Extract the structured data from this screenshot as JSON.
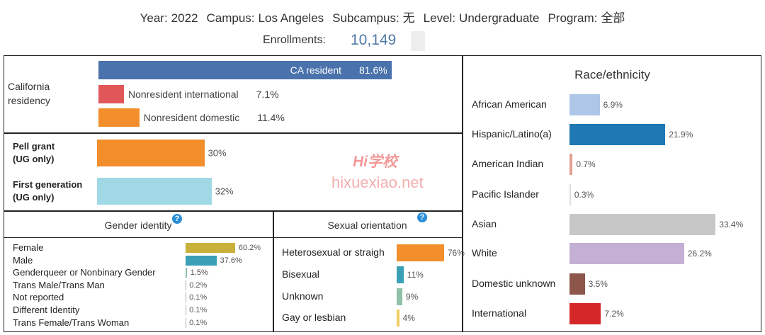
{
  "header": {
    "filters": [
      {
        "label": "Year:",
        "value": "2022"
      },
      {
        "label": "Campus:",
        "value": "Los Angeles"
      },
      {
        "label": "Subcampus:",
        "value": "无"
      },
      {
        "label": "Level:",
        "value": "Undergraduate"
      },
      {
        "label": "Program:",
        "value": "全部"
      }
    ],
    "enrollments_label": "Enrollments:",
    "enrollments_value": "10,149"
  },
  "watermark": {
    "logo": "Hi学校",
    "site": "hixuexiao.net"
  },
  "chart_data": [
    {
      "type": "bar",
      "orientation": "horizontal",
      "title": "California residency",
      "categories": [
        "CA resident",
        "Nonresident international",
        "Nonresident domestic"
      ],
      "values": [
        81.6,
        7.1,
        11.4
      ],
      "value_labels": [
        "81.6%",
        "7.1%",
        "11.4%"
      ],
      "colors": [
        "#4a72ac",
        "#e15759",
        "#f28e2b"
      ],
      "xlim": [
        0,
        100
      ]
    },
    {
      "type": "bar",
      "orientation": "horizontal",
      "categories": [
        "Pell grant\n(UG only)",
        "First generation\n(UG only)"
      ],
      "values": [
        30,
        32
      ],
      "value_labels": [
        "30%",
        "32%"
      ],
      "colors": [
        "#f28e2b",
        "#a0d8e6"
      ],
      "xlim": [
        0,
        100
      ]
    },
    {
      "type": "bar",
      "orientation": "horizontal",
      "title": "Gender identity",
      "categories": [
        "Female",
        "Male",
        "Genderqueer or Nonbinary Gender",
        "Trans Male/Trans Man",
        "Not reported",
        "Different Identity",
        "Trans Female/Trans Woman"
      ],
      "values": [
        60.2,
        37.6,
        1.5,
        0.2,
        0.1,
        0.1,
        0.1
      ],
      "value_labels": [
        "60.2%",
        "37.6%",
        "1.5%",
        "0.2%",
        "0.1%",
        "0.1%",
        "0.1%"
      ],
      "colors": [
        "#c9b03a",
        "#3aa0b5",
        "#8fc0a9",
        "#aaaaaa",
        "#aaaaaa",
        "#aaaaaa",
        "#aaaaaa"
      ],
      "xlim": [
        0,
        100
      ]
    },
    {
      "type": "bar",
      "orientation": "horizontal",
      "title": "Sexual orientation",
      "categories": [
        "Heterosexual or straigh",
        "Bisexual",
        "Unknown",
        "Gay or lesbian"
      ],
      "values": [
        76,
        11,
        9,
        4
      ],
      "value_labels": [
        "76%",
        "11%",
        "9%",
        "4%"
      ],
      "colors": [
        "#f28e2b",
        "#3aa0b5",
        "#8fc0a9",
        "#f1ce63"
      ],
      "xlim": [
        0,
        100
      ]
    },
    {
      "type": "bar",
      "orientation": "horizontal",
      "title": "Race/ethnicity",
      "categories": [
        "African American",
        "Hispanic/Latino(a)",
        "American Indian",
        "Pacific Islander",
        "Asian",
        "White",
        "Domestic unknown",
        "International"
      ],
      "values": [
        6.9,
        21.9,
        0.7,
        0.3,
        33.4,
        26.2,
        3.5,
        7.2
      ],
      "value_labels": [
        "6.9%",
        "21.9%",
        "0.7%",
        "0.3%",
        "33.4%",
        "26.2%",
        "3.5%",
        "7.2%"
      ],
      "colors": [
        "#aec7e8",
        "#1f77b4",
        "#e0a090",
        "#dddddd",
        "#c7c7c7",
        "#c5b0d5",
        "#8c564b",
        "#d62728"
      ],
      "xlim": [
        0,
        40
      ]
    }
  ]
}
